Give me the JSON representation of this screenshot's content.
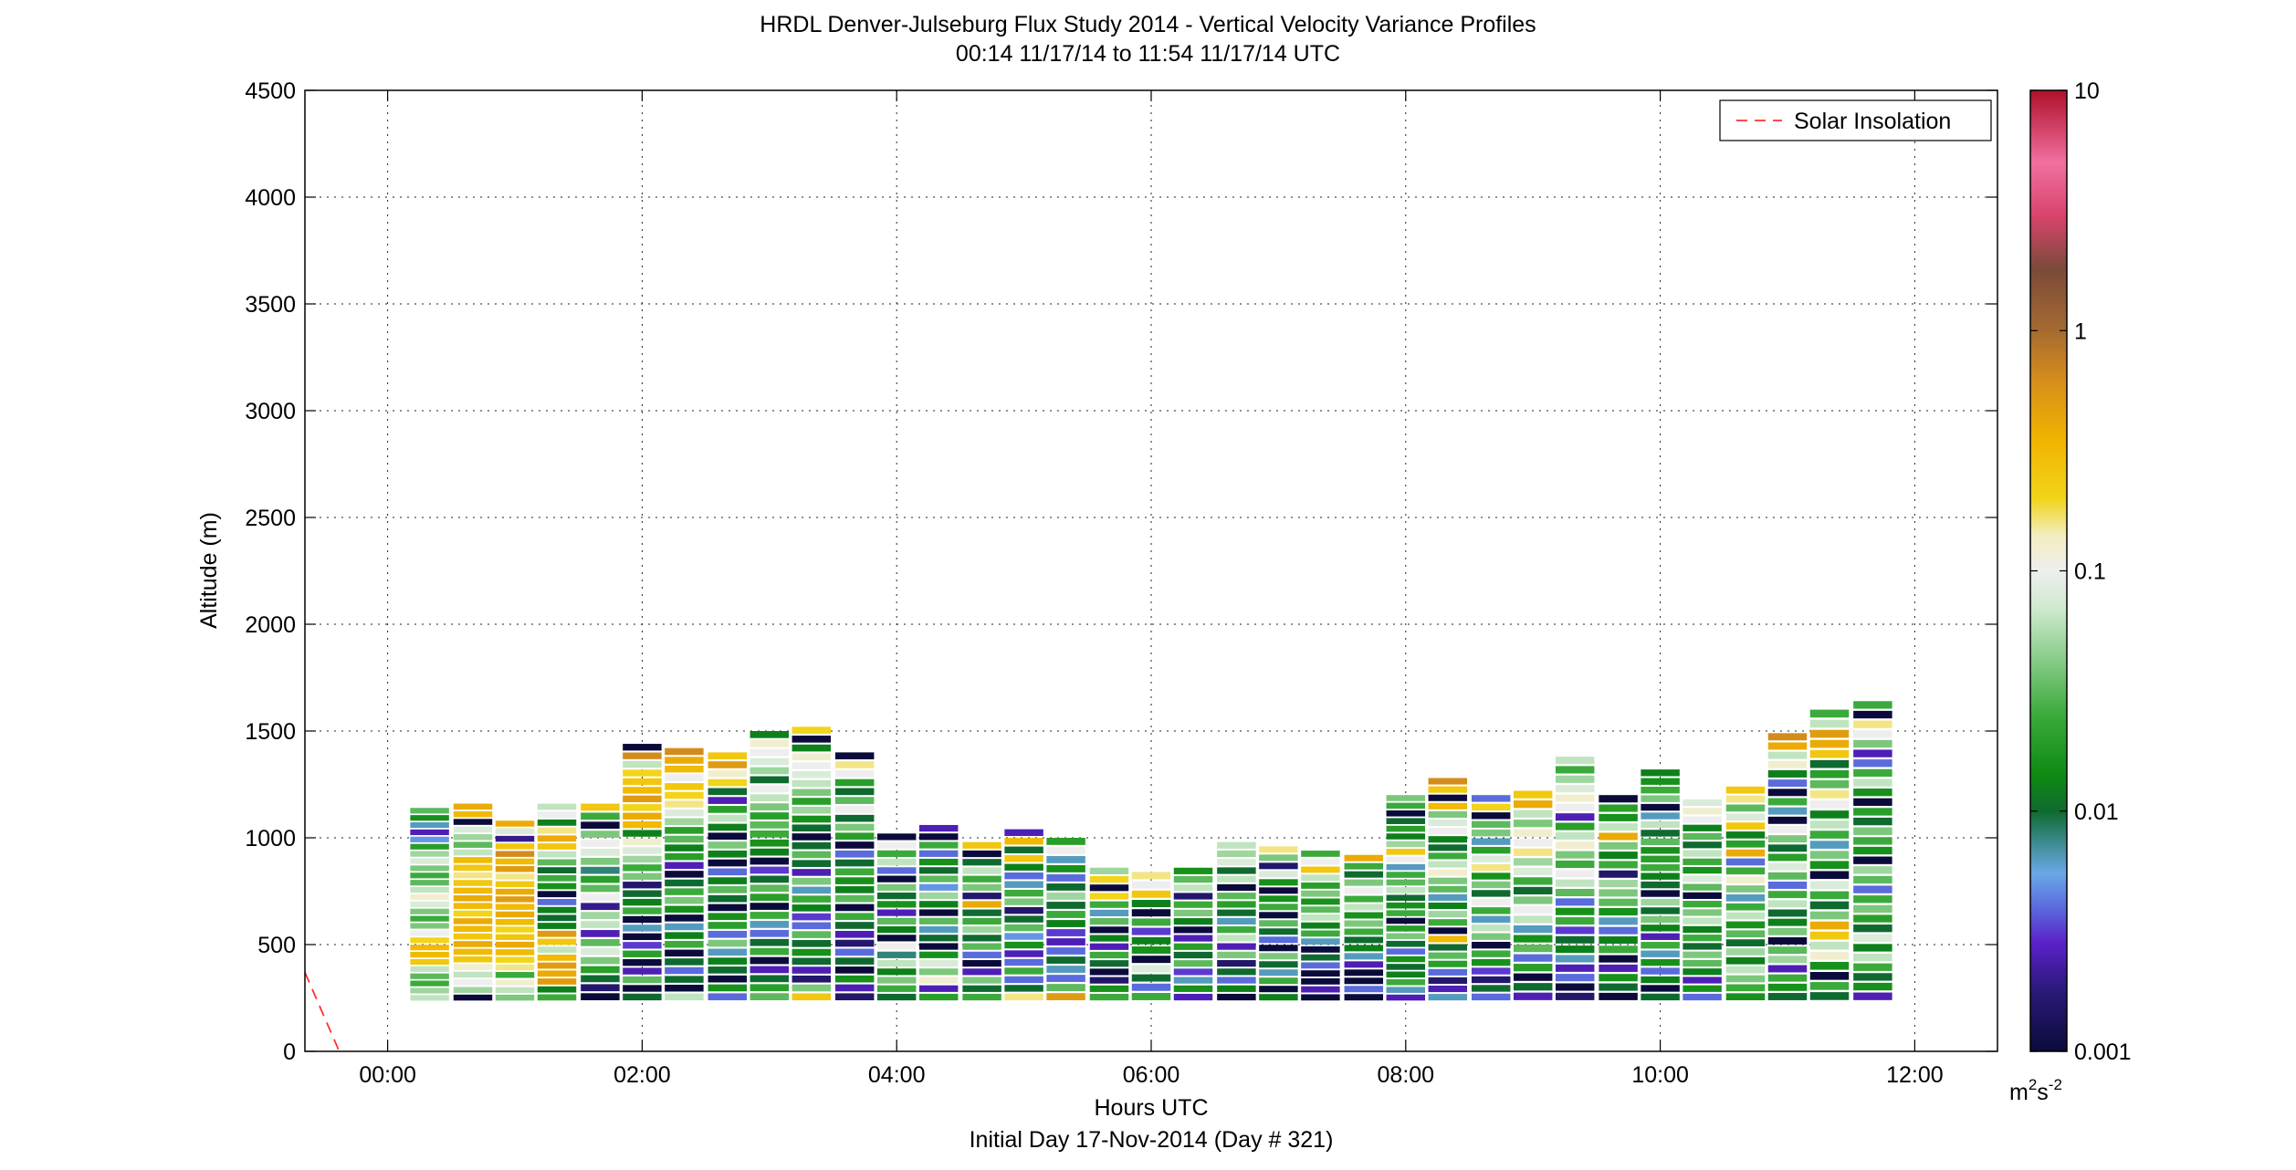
{
  "chart_data": {
    "type": "heatmap",
    "title": "HRDL Denver-Julseburg Flux Study 2014 - Vertical Velocity Variance Profiles",
    "subtitle": "00:14 11/17/14 to 11:54 11/17/14  UTC",
    "xlabel": "Hours UTC",
    "xlabel2": "Initial Day 17-Nov-2014 (Day # 321)",
    "ylabel": "Altitude (m)",
    "x_unit": "hours",
    "xlim": [
      -0.65,
      12.65
    ],
    "ylim": [
      0,
      4500
    ],
    "x_ticks": [
      0,
      2,
      4,
      6,
      8,
      10,
      12
    ],
    "x_tick_labels": [
      "00:00",
      "02:00",
      "04:00",
      "06:00",
      "08:00",
      "10:00",
      "12:00"
    ],
    "y_ticks": [
      0,
      500,
      1000,
      1500,
      2000,
      2500,
      3000,
      3500,
      4000,
      4500
    ],
    "y_tick_labels": [
      "0",
      "500",
      "1000",
      "1500",
      "2000",
      "2500",
      "3000",
      "3500",
      "4000",
      "4500"
    ],
    "grid": true,
    "legend": {
      "placement": "top-right",
      "entries": [
        "Solar Insolation"
      ]
    },
    "colorbar": {
      "scale": "log",
      "range": [
        0.001,
        10
      ],
      "tick_values": [
        0.001,
        0.01,
        0.1,
        1,
        10
      ],
      "tick_labels": [
        "0.001",
        "0.01",
        "0.1",
        "1",
        "10"
      ],
      "unit_label": "m",
      "unit_sup1": "2",
      "unit_mid": "s",
      "unit_sup2": "-2",
      "stops": [
        {
          "v": 0.001,
          "color": "#0b0b3b"
        },
        {
          "v": 0.0018,
          "color": "#2a1a7a"
        },
        {
          "v": 0.0028,
          "color": "#5a20c8"
        },
        {
          "v": 0.004,
          "color": "#5a6cdc"
        },
        {
          "v": 0.0055,
          "color": "#6aa8e8"
        },
        {
          "v": 0.0075,
          "color": "#3a8a8a"
        },
        {
          "v": 0.01,
          "color": "#0f6a30"
        },
        {
          "v": 0.014,
          "color": "#0e8a12"
        },
        {
          "v": 0.025,
          "color": "#3aaa3a"
        },
        {
          "v": 0.045,
          "color": "#8fcf8f"
        },
        {
          "v": 0.07,
          "color": "#cfeacf"
        },
        {
          "v": 0.1,
          "color": "#eeeeee"
        },
        {
          "v": 0.14,
          "color": "#f3eec0"
        },
        {
          "v": 0.2,
          "color": "#f2d41a"
        },
        {
          "v": 0.35,
          "color": "#f0b400"
        },
        {
          "v": 0.6,
          "color": "#d8901a"
        },
        {
          "v": 1,
          "color": "#a66a30"
        },
        {
          "v": 1.8,
          "color": "#7a4a3a"
        },
        {
          "v": 3,
          "color": "#d8446c"
        },
        {
          "v": 5,
          "color": "#f070a0"
        },
        {
          "v": 10,
          "color": "#b0102a"
        }
      ]
    },
    "solar_insolation": {
      "x": [
        -0.65,
        -0.38
      ],
      "y": [
        370,
        0
      ],
      "color": "#ff3030"
    },
    "profiles": [
      {
        "t": 0.33,
        "top": 1140,
        "log10": [
          -1.2,
          -1.3,
          -1.6,
          -1.5,
          -1.2,
          -0.6,
          -0.5,
          -0.5,
          -0.7,
          -1.0,
          -1.4,
          -1.6,
          -1.4,
          -1.1,
          -0.9,
          -1.2,
          -1.5,
          -1.6,
          -1.4,
          -1.1,
          -1.3,
          -1.7,
          -2.3,
          -2.6,
          -2.2,
          -1.8,
          -1.5
        ]
      },
      {
        "t": 0.67,
        "top": 1160,
        "log10": [
          -3.0,
          -1.3,
          -1.0,
          -1.2,
          -0.9,
          -0.6,
          -0.5,
          -0.4,
          -0.6,
          -0.5,
          -0.4,
          -0.7,
          -0.5,
          -0.4,
          -0.5,
          -0.6,
          -0.8,
          -0.6,
          -0.5,
          -1.2,
          -1.5,
          -1.3,
          -1.1,
          -3.0,
          -0.5,
          -0.4
        ]
      },
      {
        "t": 1.0,
        "top": 1080,
        "log10": [
          -1.4,
          -1.2,
          -0.9,
          -1.6,
          -0.8,
          -0.7,
          -0.5,
          -0.4,
          -0.6,
          -0.7,
          -0.5,
          -0.4,
          -0.5,
          -0.3,
          -0.4,
          -0.6,
          -0.8,
          -0.3,
          -0.5,
          -0.2,
          -0.6,
          -2.7,
          -1.1,
          -0.4
        ]
      },
      {
        "t": 1.33,
        "top": 1160,
        "log10": [
          -1.6,
          -1.9,
          -0.3,
          -0.4,
          -0.3,
          -0.5,
          -1.2,
          -0.6,
          -0.3,
          -1.9,
          -2.0,
          -1.9,
          -2.4,
          -3.0,
          -1.8,
          -1.6,
          -2.0,
          -1.5,
          -1.2,
          -0.6,
          -0.4,
          -0.8,
          -1.9,
          -1.0,
          -1.2
        ]
      },
      {
        "t": 1.67,
        "top": 1160,
        "log10": [
          -3.0,
          -2.8,
          -2.0,
          -1.7,
          -1.4,
          -1.1,
          -1.5,
          -2.6,
          -1.2,
          -1.3,
          -2.7,
          -1.0,
          -1.5,
          -1.7,
          -2.1,
          -1.4,
          -1.1,
          -1.0,
          -1.4,
          -3.0,
          -1.6,
          -0.6
        ]
      },
      {
        "t": 2.0,
        "top": 1440,
        "log10": [
          -2.0,
          -3.0,
          -1.5,
          -2.6,
          -3.0,
          -1.7,
          -2.5,
          -3.0,
          -2.2,
          -3.0,
          -1.6,
          -1.9,
          -2.0,
          -2.8,
          -1.4,
          -1.6,
          -1.3,
          -1.1,
          -0.9,
          -1.9,
          -0.5,
          -0.4,
          -0.7,
          -0.3,
          -0.5,
          -0.6,
          -0.7,
          -1.2,
          -0.2,
          -3.0
        ]
      },
      {
        "t": 2.33,
        "top": 1420,
        "log10": [
          -1.2,
          -3.0,
          -2.0,
          -2.4,
          -2.0,
          -3.0,
          -1.6,
          -1.9,
          -2.2,
          -3.0,
          -1.8,
          -1.4,
          -1.6,
          -2.0,
          -3.0,
          -2.6,
          -1.7,
          -1.9,
          -1.5,
          -1.7,
          -1.3,
          -1.1,
          -0.8,
          -0.7,
          -0.6,
          -1.0,
          -0.5,
          -0.4,
          -0.2
        ]
      },
      {
        "t": 2.67,
        "top": 1400,
        "log10": [
          -2.4,
          -1.8,
          -3.0,
          -2.0,
          -1.9,
          -2.2,
          -1.4,
          -2.4,
          -1.7,
          -1.8,
          -3.0,
          -2.0,
          -1.5,
          -1.9,
          -2.4,
          -3.0,
          -1.9,
          -1.4,
          -3.0,
          -1.9,
          -1.2,
          -1.7,
          -2.6,
          -2.0,
          -0.7,
          -0.9,
          -0.3,
          -0.6
        ]
      },
      {
        "t": 3.0,
        "top": 1500,
        "log10": [
          -1.5,
          -1.7,
          -2.0,
          -2.6,
          -3.0,
          -1.6,
          -2.0,
          -2.4,
          -2.2,
          -1.6,
          -3.0,
          -1.7,
          -1.5,
          -2.0,
          -2.5,
          -3.0,
          -1.9,
          -1.8,
          -1.6,
          -1.5,
          -1.7,
          -1.4,
          -1.2,
          -1.0,
          -2.0,
          -1.3,
          -1.1,
          -1.0,
          -0.9,
          -1.9
        ]
      },
      {
        "t": 3.33,
        "top": 1520,
        "log10": [
          -0.6,
          -1.4,
          -2.8,
          -2.6,
          -2.0,
          -1.8,
          -2.0,
          -1.5,
          -2.4,
          -2.5,
          -1.9,
          -1.6,
          -2.2,
          -1.4,
          -2.6,
          -2.0,
          -1.5,
          -2.0,
          -3.0,
          -2.0,
          -1.8,
          -1.3,
          -1.7,
          -1.4,
          -1.2,
          -1.1,
          -1.0,
          -0.9,
          -1.9,
          -3.0,
          -0.7
        ]
      },
      {
        "t": 3.67,
        "top": 1400,
        "log10": [
          -2.8,
          -2.6,
          -1.8,
          -3.0,
          -2.0,
          -2.4,
          -2.8,
          -2.6,
          -2.0,
          -1.6,
          -3.0,
          -1.5,
          -1.9,
          -1.8,
          -1.6,
          -2.0,
          -2.4,
          -3.0,
          -1.7,
          -1.4,
          -2.0,
          -1.0,
          -1.5,
          -2.0,
          -1.7,
          -1.0,
          -0.8,
          -3.0
        ]
      },
      {
        "t": 4.0,
        "top": 1020,
        "log10": [
          -2.0,
          -1.6,
          -1.4,
          -1.9,
          -1.2,
          -2.1,
          -1.0,
          -3.0,
          -1.9,
          -1.5,
          -2.6,
          -1.8,
          -2.0,
          -1.4,
          -3.0,
          -2.4,
          -1.2,
          -1.6,
          -1.0,
          -3.0
        ]
      },
      {
        "t": 4.33,
        "top": 1060,
        "log10": [
          -1.7,
          -2.6,
          -0.9,
          -1.4,
          -1.1,
          -1.8,
          -3.0,
          -2.0,
          -2.2,
          -1.5,
          -3.0,
          -1.9,
          -1.3,
          -2.3,
          -1.5,
          -2.0,
          -1.8,
          -2.4,
          -1.6,
          -3.0,
          -2.6
        ]
      },
      {
        "t": 4.67,
        "top": 980,
        "log10": [
          -1.6,
          -2.0,
          -1.4,
          -2.6,
          -3.0,
          -2.4,
          -1.5,
          -2.0,
          -1.3,
          -1.6,
          -2.0,
          -0.4,
          -2.8,
          -1.4,
          -1.6,
          -1.2,
          -2.0,
          -3.0,
          -0.6
        ]
      },
      {
        "t": 5.0,
        "top": 1040,
        "log10": [
          -0.8,
          -2.0,
          -2.4,
          -1.6,
          -2.4,
          -2.6,
          -1.8,
          -2.3,
          -1.5,
          -2.0,
          -2.8,
          -1.4,
          -1.6,
          -2.2,
          -2.4,
          -1.9,
          -0.6,
          -2.0,
          -0.5,
          -2.6
        ]
      },
      {
        "t": 5.33,
        "top": 1000,
        "log10": [
          -0.3,
          -1.5,
          -2.4,
          -2.2,
          -2.0,
          -2.4,
          -2.6,
          -2.5,
          -1.9,
          -1.6,
          -2.0,
          -1.3,
          -2.0,
          -2.4,
          -1.8,
          -2.2,
          -1.0,
          -1.7
        ]
      },
      {
        "t": 5.67,
        "top": 860,
        "log10": [
          -1.6,
          -1.8,
          -2.8,
          -3.0,
          -2.0,
          -1.6,
          -2.6,
          -1.9,
          -3.0,
          -1.5,
          -2.2,
          -1.6,
          -0.7,
          -3.0,
          -0.7,
          -1.3
        ]
      },
      {
        "t": 6.0,
        "top": 840,
        "log10": [
          -1.6,
          -2.4,
          -2.0,
          -1.1,
          -3.0,
          -1.8,
          -1.9,
          -2.5,
          -1.6,
          -3.0,
          -1.9,
          -0.6,
          -1.0,
          -0.8
        ]
      },
      {
        "t": 6.33,
        "top": 860,
        "log10": [
          -2.6,
          -1.8,
          -2.2,
          -2.5,
          -1.5,
          -2.0,
          -1.7,
          -2.6,
          -3.0,
          -1.9,
          -1.4,
          -1.6,
          -2.8,
          -1.2,
          -1.5,
          -1.8
        ]
      },
      {
        "t": 6.67,
        "top": 980,
        "log10": [
          -3.0,
          -1.9,
          -2.4,
          -2.0,
          -2.8,
          -1.4,
          -2.6,
          -1.2,
          -1.6,
          -2.2,
          -2.0,
          -1.7,
          -1.5,
          -3.0,
          -1.2,
          -2.0,
          -1.1,
          -1.3,
          -1.2
        ]
      },
      {
        "t": 7.0,
        "top": 960,
        "log10": [
          -1.9,
          -3.0,
          -1.6,
          -2.2,
          -2.0,
          -1.4,
          -3.0,
          -2.4,
          -2.0,
          -1.5,
          -3.0,
          -1.6,
          -1.8,
          -3.0,
          -1.8,
          -1.1,
          -2.8,
          -1.4,
          -0.8
        ]
      },
      {
        "t": 7.33,
        "top": 940,
        "log10": [
          -3.0,
          -2.6,
          -3.0,
          -3.0,
          -2.4,
          -2.0,
          -3.0,
          -2.2,
          -1.6,
          -1.9,
          -1.2,
          -1.5,
          -1.8,
          -1.4,
          -1.7,
          -1.2,
          -0.6,
          -1.0,
          -1.6
        ]
      },
      {
        "t": 7.67,
        "top": 920,
        "log10": [
          -3.0,
          -2.4,
          -3.0,
          -3.0,
          -2.6,
          -2.2,
          -1.9,
          -2.0,
          -1.6,
          -1.4,
          -1.8,
          -1.2,
          -1.6,
          -1.0,
          -1.4,
          -2.0,
          -1.6,
          -0.4
        ]
      },
      {
        "t": 8.0,
        "top": 1200,
        "log10": [
          -2.6,
          -2.2,
          -1.6,
          -1.9,
          -2.0,
          -1.8,
          -2.4,
          -2.0,
          -1.4,
          -1.7,
          -3.0,
          -1.6,
          -1.8,
          -2.0,
          -1.2,
          -1.5,
          -1.6,
          -2.2,
          -1.0,
          -0.6,
          -1.3,
          -1.9,
          -1.7,
          -2.0,
          -3.0,
          -1.6,
          -1.4
        ]
      },
      {
        "t": 8.33,
        "top": 1280,
        "log10": [
          -2.2,
          -2.6,
          -2.8,
          -2.4,
          -1.7,
          -1.5,
          -2.0,
          -0.5,
          -3.0,
          -1.6,
          -1.3,
          -1.9,
          -2.2,
          -1.5,
          -1.4,
          -0.9,
          -1.2,
          -1.6,
          -2.0,
          -1.9,
          -1.0,
          -1.1,
          -1.4,
          -0.5,
          -3.0,
          -0.6,
          -0.2
        ]
      },
      {
        "t": 8.67,
        "top": 1200,
        "log10": [
          -2.4,
          -2.0,
          -2.8,
          -2.5,
          -1.8,
          -1.6,
          -3.0,
          -1.4,
          -1.2,
          -2.2,
          -1.6,
          -1.0,
          -2.0,
          -1.4,
          -1.8,
          -0.8,
          -1.1,
          -1.7,
          -2.2,
          -1.4,
          -1.5,
          -3.0,
          -0.7,
          -2.4
        ]
      },
      {
        "t": 9.0,
        "top": 1220,
        "log10": [
          -2.6,
          -2.0,
          -3.0,
          -1.7,
          -2.4,
          -1.5,
          -1.8,
          -2.2,
          -1.2,
          -1.0,
          -1.4,
          -2.0,
          -1.6,
          -1.1,
          -1.3,
          -0.8,
          -1.0,
          -0.9,
          -1.4,
          -1.2,
          -0.4,
          -0.6
        ]
      },
      {
        "t": 9.33,
        "top": 1380,
        "log10": [
          -2.8,
          -3.0,
          -2.4,
          -2.6,
          -2.2,
          -1.9,
          -2.0,
          -2.5,
          -1.6,
          -1.8,
          -2.4,
          -1.5,
          -1.2,
          -1.0,
          -1.6,
          -1.4,
          -0.9,
          -1.2,
          -1.7,
          -2.6,
          -1.0,
          -0.9,
          -1.1,
          -1.3,
          -1.6,
          -1.2
        ]
      },
      {
        "t": 9.67,
        "top": 1200,
        "log10": [
          -3.0,
          -2.0,
          -1.8,
          -2.6,
          -3.0,
          -1.6,
          -1.9,
          -2.4,
          -2.2,
          -1.8,
          -1.5,
          -1.4,
          -1.3,
          -2.8,
          -1.6,
          -1.9,
          -1.4,
          -0.4,
          -1.2,
          -1.8,
          -1.7,
          -3.0
        ]
      },
      {
        "t": 10.0,
        "top": 1320,
        "log10": [
          -2.0,
          -3.0,
          -1.9,
          -2.4,
          -1.8,
          -2.2,
          -1.6,
          -2.6,
          -1.9,
          -1.4,
          -2.0,
          -1.3,
          -3.0,
          -2.0,
          -1.9,
          -1.6,
          -1.7,
          -1.8,
          -1.5,
          -2.0,
          -1.2,
          -2.2,
          -3.0,
          -1.4,
          -1.6,
          -1.8,
          -1.9
        ]
      },
      {
        "t": 10.33,
        "top": 1180,
        "log10": [
          -2.4,
          -1.8,
          -2.6,
          -1.9,
          -1.5,
          -1.4,
          -2.0,
          -1.6,
          -1.9,
          -1.2,
          -1.4,
          -1.6,
          -3.0,
          -1.5,
          -1.1,
          -1.8,
          -1.6,
          -1.2,
          -2.0,
          -1.5,
          -1.9,
          -1.0,
          -0.9,
          -1.1
        ]
      },
      {
        "t": 10.67,
        "top": 1240,
        "log10": [
          -1.8,
          -1.6,
          -1.4,
          -1.2,
          -1.9,
          -1.3,
          -2.0,
          -1.5,
          -1.8,
          -1.2,
          -1.6,
          -2.2,
          -1.4,
          -0.9,
          -1.6,
          -2.4,
          -0.4,
          -1.7,
          -1.9,
          -0.6,
          -1.1,
          -1.5,
          -0.8,
          -0.6
        ]
      },
      {
        "t": 11.0,
        "top": 1490,
        "log10": [
          -2.0,
          -1.8,
          -1.6,
          -2.6,
          -1.3,
          -1.5,
          -3.0,
          -1.4,
          -1.9,
          -2.0,
          -1.2,
          -1.6,
          -2.4,
          -1.5,
          -1.1,
          -1.7,
          -2.0,
          -1.4,
          -1.0,
          -3.0,
          -2.2,
          -1.6,
          -3.0,
          -2.4,
          -1.9,
          -0.9,
          -1.2,
          -0.4,
          -0.2
        ]
      },
      {
        "t": 11.33,
        "top": 1600,
        "log10": [
          -2.0,
          -1.6,
          -3.0,
          -1.8,
          -0.9,
          -1.2,
          -0.6,
          -0.4,
          -1.4,
          -2.0,
          -1.6,
          -1.1,
          -3.0,
          -1.8,
          -1.4,
          -2.2,
          -1.6,
          -1.2,
          -1.9,
          -1.0,
          -0.8,
          -1.5,
          -1.7,
          -2.0,
          -0.6,
          -0.4,
          -0.3,
          -1.2,
          -1.6
        ]
      },
      {
        "t": 11.67,
        "top": 1640,
        "log10": [
          -2.6,
          -1.8,
          -2.0,
          -1.6,
          -1.2,
          -1.9,
          -1.1,
          -2.0,
          -1.7,
          -1.4,
          -1.6,
          -2.4,
          -1.5,
          -1.3,
          -3.0,
          -1.8,
          -1.6,
          -1.4,
          -2.0,
          -1.7,
          -3.0,
          -1.8,
          -1.2,
          -1.6,
          -2.4,
          -2.6,
          -1.4,
          -1.0,
          -0.8,
          -3.0,
          -1.6
        ]
      }
    ]
  }
}
